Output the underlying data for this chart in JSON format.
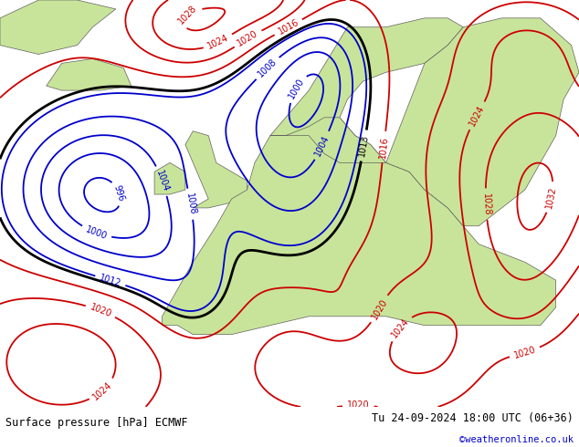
{
  "title_left": "Surface pressure [hPa] ECMWF",
  "title_right": "Tu 24-09-2024 18:00 UTC (06+36)",
  "copyright": "©weatheronline.co.uk",
  "background_color": "#ffffff",
  "land_color": "#c8e49a",
  "sea_color": "#d8d8d8",
  "isobar_low_color": "#0000cc",
  "isobar_high_color": "#cc0000",
  "isobar_1013_color": "#000000",
  "isobar_linewidth": 1.3,
  "isobar_1013_linewidth": 2.0,
  "isobar_label_fontsize": 7,
  "bottom_bar_color": "#c8c8c8",
  "bottom_text_color": "#000000",
  "copyright_color": "#0000cc",
  "figsize": [
    6.34,
    4.9
  ],
  "dpi": 100,
  "bottom_bar_height": 0.09,
  "lon_min": -30,
  "lon_max": 45,
  "lat_min": 28,
  "lat_max": 73
}
